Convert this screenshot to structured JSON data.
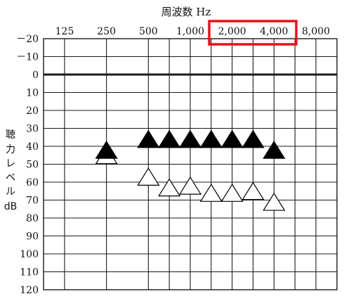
{
  "chart_data": {
    "type": "scatter",
    "title": "周波数 Hz",
    "xlabel": "周波数 Hz",
    "ylabel": [
      "聴",
      "力",
      "レ",
      "ベ",
      "ル",
      "dB"
    ],
    "x_ticks": [
      "125",
      "250",
      "500",
      "1,000",
      "2,000",
      "4,000",
      "8,000"
    ],
    "x_values": [
      125,
      250,
      500,
      1000,
      2000,
      4000,
      8000
    ],
    "x_scale": "log2",
    "y_ticks": [
      "－20",
      "－10",
      "0",
      "10",
      "20",
      "30",
      "40",
      "50",
      "60",
      "70",
      "80",
      "90",
      "100",
      "110",
      "120"
    ],
    "ylim": [
      -20,
      120
    ],
    "y_inverted": true,
    "grid": true,
    "series": [
      {
        "marker": "filled-triangle",
        "points": [
          {
            "x": 250,
            "y": 42
          },
          {
            "x": 500,
            "y": 36
          },
          {
            "x": 707,
            "y": 36
          },
          {
            "x": 1000,
            "y": 36
          },
          {
            "x": 1414,
            "y": 36
          },
          {
            "x": 2000,
            "y": 36
          },
          {
            "x": 2828,
            "y": 36
          },
          {
            "x": 4000,
            "y": 42
          }
        ]
      },
      {
        "marker": "open-triangle",
        "points": [
          {
            "x": 250,
            "y": 45
          },
          {
            "x": 500,
            "y": 57
          },
          {
            "x": 707,
            "y": 63
          },
          {
            "x": 1000,
            "y": 62
          },
          {
            "x": 1414,
            "y": 66
          },
          {
            "x": 2000,
            "y": 66
          },
          {
            "x": 2828,
            "y": 65
          },
          {
            "x": 4000,
            "y": 71
          }
        ]
      }
    ],
    "highlight": {
      "label": "2,000 4,000",
      "color": "#e8121b"
    },
    "colors": {
      "grid": "#1a1a1a",
      "text": "#111111",
      "marker": "#000000",
      "highlight": "#e8121b"
    }
  }
}
